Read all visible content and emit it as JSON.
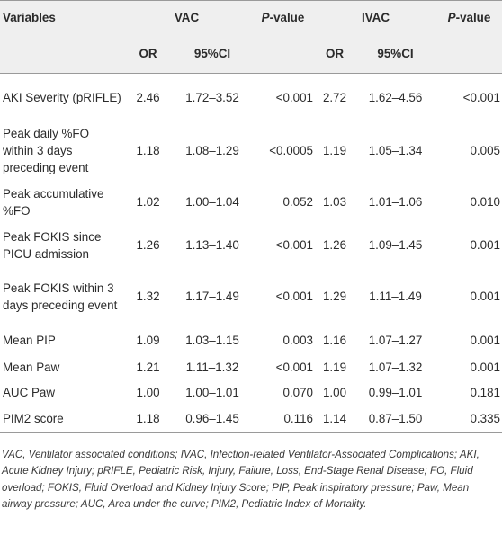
{
  "header": {
    "variables": "Variables",
    "vac": "VAC",
    "ivac": "IVAC",
    "p_italic": "P",
    "p_rest": "-value",
    "or": "OR",
    "ci": "95%CI"
  },
  "rows": [
    {
      "variable": "AKI Severity (pRIFLE)",
      "vac_or": "2.46",
      "vac_ci": "1.72–3.52",
      "vac_p": "<0.001",
      "ivac_or": "2.72",
      "ivac_ci": "1.62–4.56",
      "ivac_p": "<0.001"
    },
    {
      "variable": "Peak daily %FO within 3 days preceding event",
      "vac_or": "1.18",
      "vac_ci": "1.08–1.29",
      "vac_p": "<0.0005",
      "ivac_or": "1.19",
      "ivac_ci": "1.05–1.34",
      "ivac_p": "0.005"
    },
    {
      "variable": "Peak accumulative %FO",
      "vac_or": "1.02",
      "vac_ci": "1.00–1.04",
      "vac_p": "0.052",
      "ivac_or": "1.03",
      "ivac_ci": "1.01–1.06",
      "ivac_p": "0.010"
    },
    {
      "variable": "Peak FOKIS since PICU admission",
      "vac_or": "1.26",
      "vac_ci": "1.13–1.40",
      "vac_p": "<0.001",
      "ivac_or": "1.26",
      "ivac_ci": "1.09–1.45",
      "ivac_p": "0.001"
    },
    {
      "variable": "Peak FOKIS within 3 days preceding event",
      "vac_or": "1.32",
      "vac_ci": "1.17–1.49",
      "vac_p": "<0.001",
      "ivac_or": "1.29",
      "ivac_ci": "1.11–1.49",
      "ivac_p": "0.001"
    },
    {
      "variable": "Mean PIP",
      "vac_or": "1.09",
      "vac_ci": "1.03–1.15",
      "vac_p": "0.003",
      "ivac_or": "1.16",
      "ivac_ci": "1.07–1.27",
      "ivac_p": "0.001"
    },
    {
      "variable": "Mean Paw",
      "vac_or": "1.21",
      "vac_ci": "1.11–1.32",
      "vac_p": "<0.001",
      "ivac_or": "1.19",
      "ivac_ci": "1.07–1.32",
      "ivac_p": "0.001"
    },
    {
      "variable": "AUC Paw",
      "vac_or": "1.00",
      "vac_ci": "1.00–1.01",
      "vac_p": "0.070",
      "ivac_or": "1.00",
      "ivac_ci": "0.99–1.01",
      "ivac_p": "0.181"
    },
    {
      "variable": "PIM2 score",
      "vac_or": "1.18",
      "vac_ci": "0.96–1.45",
      "vac_p": "0.116",
      "ivac_or": "1.14",
      "ivac_ci": "0.87–1.50",
      "ivac_p": "0.335"
    }
  ],
  "footnote": "VAC, Ventilator associated conditions; IVAC, Infection-related Ventilator-Associated Complications; AKI, Acute Kidney Injury; pRIFLE, Pediatric Risk, Injury, Failure, Loss, End-Stage Renal Disease; FO, Fluid overload; FOKIS, Fluid Overload and Kidney Injury Score; PIP, Peak inspiratory pressure; Paw, Mean airway pressure; AUC, Area under the curve; PIM2, Pediatric Index of Mortality."
}
